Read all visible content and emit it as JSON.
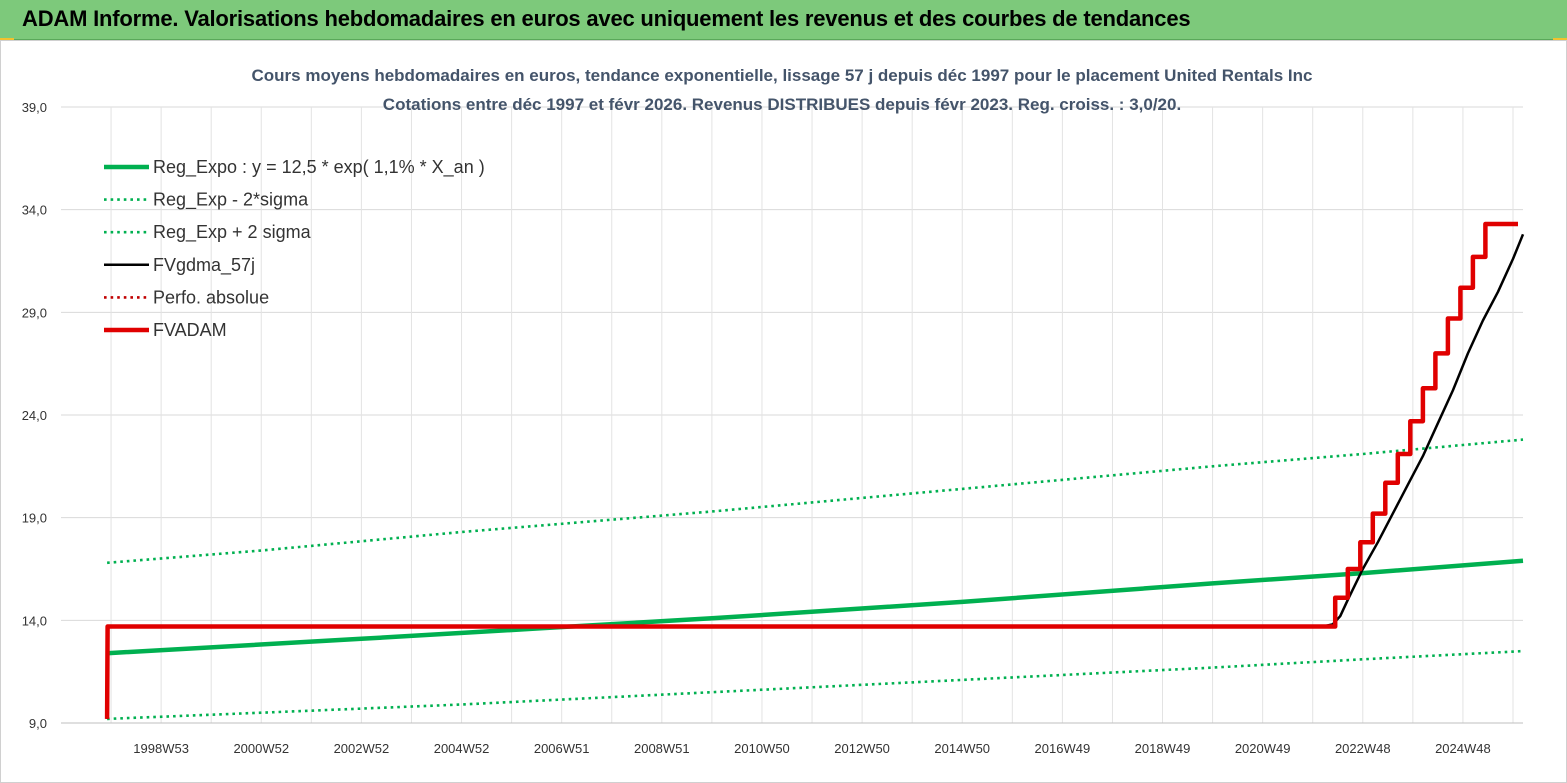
{
  "banner": {
    "title": "ADAM Informe. Valorisations hebdomadaires en euros avec uniquement les revenus et des courbes de tendances"
  },
  "chart_data": {
    "type": "line",
    "title_lines": [
      "Cours moyens hebdomadaires en euros, tendance exponentielle, lissage 57 j depuis déc 1997 pour le placement United Rentals Inc",
      "Cotations entre déc 1997 et févr 2026. Revenus DISTRIBUES depuis févr 2023. Reg. croiss. : 3,0/20."
    ],
    "xlabel": "",
    "ylabel": "",
    "ylim": [
      9.0,
      39.0
    ],
    "yticks": [
      "9,0",
      "14,0",
      "19,0",
      "24,0",
      "29,0",
      "34,0",
      "39,0"
    ],
    "yticks_values": [
      9,
      14,
      19,
      24,
      29,
      34,
      39
    ],
    "xlim": [
      1997.0,
      2026.2
    ],
    "xtick_labels": [
      "1998W53",
      "2000W52",
      "2002W52",
      "2004W52",
      "2006W51",
      "2008W51",
      "2010W50",
      "2012W50",
      "2014W50",
      "2016W49",
      "2018W49",
      "2020W49",
      "2022W48",
      "2024W48"
    ],
    "xtick_positions": [
      1999.0,
      2001.0,
      2003.0,
      2005.0,
      2007.0,
      2009.0,
      2011.0,
      2013.0,
      2015.0,
      2017.0,
      2019.0,
      2021.0,
      2023.0,
      2025.0
    ],
    "grid": true,
    "legend_position": "top-left",
    "series": [
      {
        "name": "Reg_Expo : y = 12,5 * exp( 1,1% *  X_an )",
        "color": "#00b050",
        "style": "solid-thick",
        "x": [
          1997.92,
          2003.0,
          2006.5,
          2010.0,
          2015.0,
          2020.0,
          2023.0,
          2026.2
        ],
        "y": [
          12.4,
          13.1,
          13.6,
          14.1,
          14.9,
          15.8,
          16.3,
          16.9
        ]
      },
      {
        "name": "Reg_Exp - 2*sigma",
        "color": "#00b050",
        "style": "dotted",
        "x": [
          1997.92,
          2001.0,
          2005.0,
          2010.0,
          2015.0,
          2020.0,
          2023.0,
          2026.2
        ],
        "y": [
          9.2,
          9.5,
          9.9,
          10.5,
          11.1,
          11.7,
          12.1,
          12.5
        ]
      },
      {
        "name": "Reg_Exp + 2 sigma",
        "color": "#00b050",
        "style": "dotted",
        "x": [
          1997.92,
          2001.0,
          2005.0,
          2010.0,
          2015.0,
          2020.0,
          2023.0,
          2026.2
        ],
        "y": [
          16.8,
          17.4,
          18.3,
          19.3,
          20.4,
          21.5,
          22.1,
          22.8
        ]
      },
      {
        "name": "FVgdma_57j",
        "color": "#000000",
        "style": "solid",
        "x": [
          1997.92,
          1997.93,
          2022.2,
          2022.4,
          2022.55,
          2022.7,
          2023.0,
          2023.3,
          2023.6,
          2023.9,
          2024.2,
          2024.5,
          2024.8,
          2025.1,
          2025.4,
          2025.7,
          2026.0,
          2026.2
        ],
        "y": [
          9.2,
          13.7,
          13.7,
          13.8,
          14.2,
          15.0,
          16.5,
          17.8,
          19.2,
          20.6,
          22.0,
          23.6,
          25.2,
          27.0,
          28.6,
          30.0,
          31.6,
          32.8
        ]
      },
      {
        "name": "Perfo. absolue",
        "color": "#c00000",
        "style": "dotted",
        "x": [],
        "y": []
      },
      {
        "name": "FVADAM",
        "color": "#e00000",
        "style": "solid-thick",
        "x": [
          1997.92,
          1997.93,
          2022.45,
          2022.45,
          2022.7,
          2022.7,
          2022.95,
          2022.95,
          2023.2,
          2023.2,
          2023.45,
          2023.45,
          2023.7,
          2023.7,
          2023.95,
          2023.95,
          2024.2,
          2024.2,
          2024.45,
          2024.45,
          2024.7,
          2024.7,
          2024.95,
          2024.95,
          2025.2,
          2025.2,
          2025.45,
          2025.45,
          2025.7,
          2025.7,
          2025.95,
          2025.95,
          2026.1,
          2026.1
        ],
        "y": [
          9.2,
          13.7,
          13.7,
          15.1,
          15.1,
          16.5,
          16.5,
          17.8,
          17.8,
          19.2,
          19.2,
          20.7,
          20.7,
          22.1,
          22.1,
          23.7,
          23.7,
          25.3,
          25.3,
          27.0,
          27.0,
          28.7,
          28.7,
          30.2,
          30.2,
          31.7,
          31.7,
          33.3,
          33.3,
          33.3,
          33.3,
          33.3,
          33.3,
          33.3
        ]
      }
    ]
  }
}
